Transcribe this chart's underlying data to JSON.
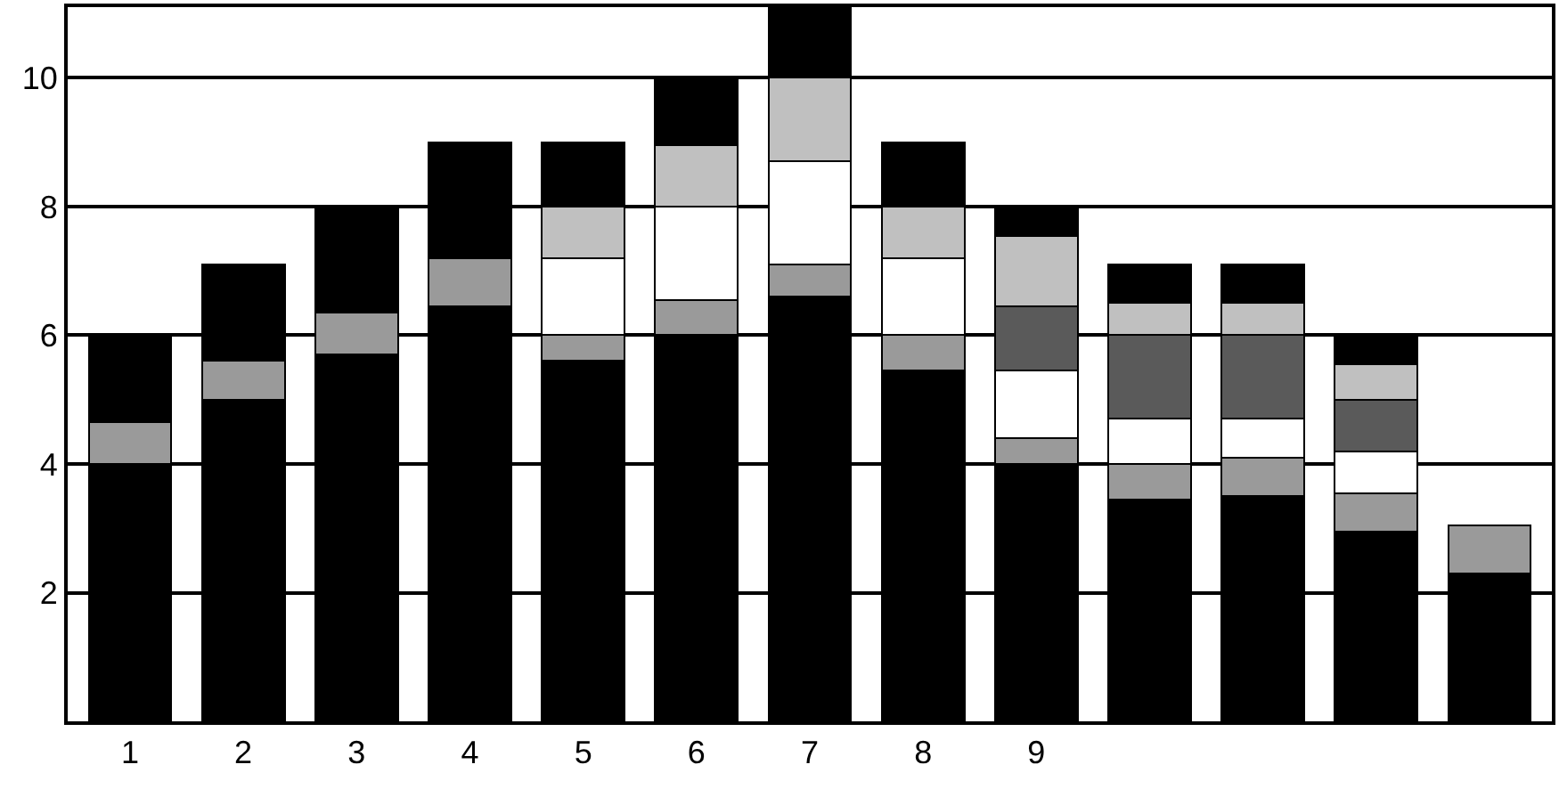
{
  "chart_data": {
    "type": "bar",
    "stacked": true,
    "categories": [
      "1",
      "2",
      "3",
      "4",
      "5",
      "6",
      "7",
      "8",
      "9",
      null,
      null,
      null,
      null
    ],
    "series": [
      {
        "color": "#000000",
        "values": [
          4.0,
          5.0,
          5.7,
          6.45,
          5.6,
          6.0,
          6.6,
          5.45,
          4.0,
          3.45,
          3.5,
          2.95,
          2.3
        ]
      },
      {
        "color": "#9a9a9a",
        "values": [
          0.65,
          0.6,
          0.65,
          0.75,
          0.4,
          0.55,
          0.5,
          0.55,
          0.4,
          0.55,
          0.6,
          0.6,
          0.75
        ]
      },
      {
        "color": "#ffffff",
        "values": [
          0,
          0,
          0,
          0,
          1.2,
          1.45,
          1.6,
          1.2,
          1.05,
          0.7,
          0.6,
          0.65,
          0
        ]
      },
      {
        "color": "#5a5a5a",
        "values": [
          0,
          0,
          0,
          0,
          0,
          0,
          0,
          0,
          1.0,
          1.3,
          1.3,
          0.8,
          0
        ]
      },
      {
        "color": "#c0c0c0",
        "values": [
          0,
          0,
          0,
          0,
          0.8,
          0.95,
          1.3,
          0.8,
          1.1,
          0.5,
          0.5,
          0.55,
          0
        ]
      },
      {
        "color": "#000000",
        "values": [
          1.35,
          1.5,
          1.65,
          1.8,
          1.0,
          1.05,
          1.1,
          1.0,
          0.45,
          0.6,
          0.6,
          0.45,
          0
        ]
      }
    ],
    "ylim": [
      0,
      11.1
    ],
    "yticks": [
      2,
      4,
      6,
      8,
      10
    ],
    "grid": "y"
  }
}
